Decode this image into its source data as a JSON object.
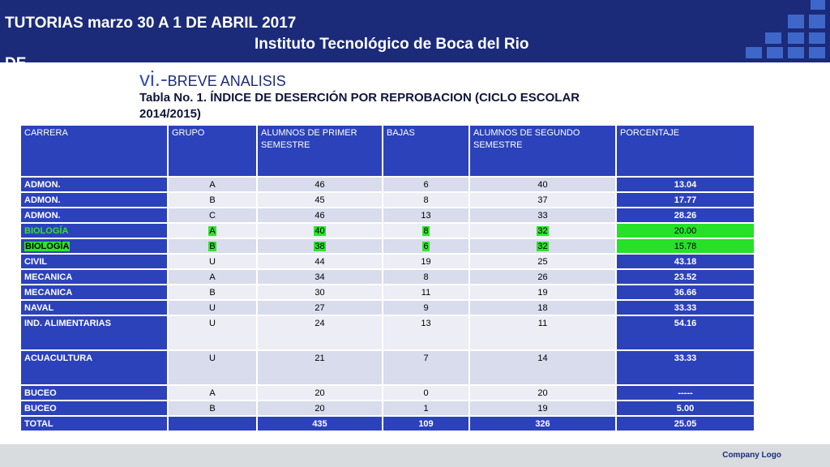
{
  "header": {
    "title": "TUTORIAS  marzo 30 A 1 DE ABRIL 2017",
    "subtitle": "Instituto Tecnológico de Boca del Rio",
    "cut_text": "DE"
  },
  "section": {
    "number": "vi.-",
    "title": "BREVE ANALISIS"
  },
  "caption": "Tabla No. 1. ÍNDICE DE DESERCIÓN POR REPROBACION (CICLO ESCOLAR 2014/2015)",
  "table": {
    "headers": [
      "CARRERA",
      "GRUPO",
      "ALUMNOS DE PRIMER SEMESTRE",
      "BAJAS",
      "ALUMNOS DE SEGUNDO SEMESTRE",
      "PORCENTAJE"
    ],
    "rows": [
      [
        "ADMON.",
        "A",
        "46",
        "6",
        "40",
        "13.04"
      ],
      [
        "ADMON.",
        "B",
        "45",
        "8",
        "37",
        "17.77"
      ],
      [
        "ADMON.",
        "C",
        "46",
        "13",
        "33",
        "28.26"
      ],
      [
        "BIOLOGÍA",
        "A",
        "40",
        "8",
        "32",
        "20.00"
      ],
      [
        "BIOLOGÍA",
        "B",
        "38",
        "6",
        "32",
        "15.78"
      ],
      [
        "CIVIL",
        "U",
        "44",
        "19",
        "25",
        "43.18"
      ],
      [
        "MECANICA",
        "A",
        "34",
        "8",
        "26",
        "23.52"
      ],
      [
        "MECANICA",
        "B",
        "30",
        "11",
        "19",
        "36.66"
      ],
      [
        "NAVAL",
        "U",
        "27",
        "9",
        "18",
        "33.33"
      ],
      [
        "IND. ALIMENTARIAS",
        "U",
        "24",
        "13",
        "11",
        "54.16"
      ],
      [
        "ACUACULTURA",
        "U",
        "21",
        "7",
        "14",
        "33.33"
      ],
      [
        "BUCEO",
        "A",
        "20",
        "0",
        "20",
        "-----"
      ],
      [
        "BUCEO",
        "B",
        "20",
        "1",
        "19",
        "5.00"
      ]
    ],
    "total": [
      "TOTAL",
      "",
      "435",
      "109",
      "326",
      "25.05"
    ]
  },
  "footer": {
    "logo_text": "Company Logo"
  },
  "colors": {
    "header_bg": "#1b2b7a",
    "table_header_bg": "#2c42bb",
    "highlight_green": "#27e029"
  }
}
